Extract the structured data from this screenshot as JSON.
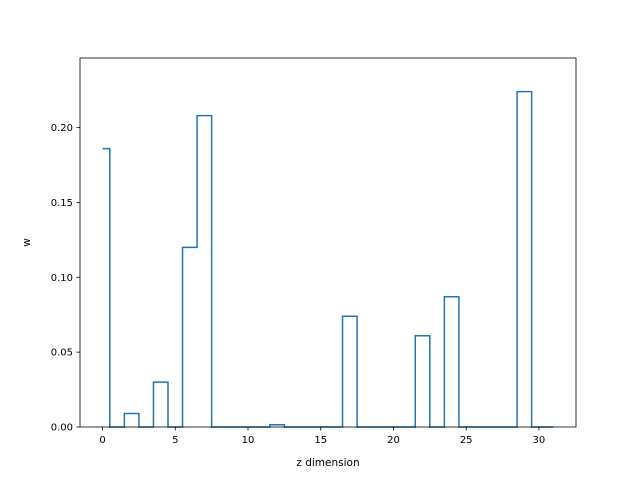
{
  "chart_data": {
    "type": "step",
    "title": "",
    "xlabel": "z dimension",
    "ylabel": "w",
    "xlim": [
      -1.55,
      32.55
    ],
    "ylim": [
      0,
      0.2465
    ],
    "xticks": [
      0,
      5,
      10,
      15,
      20,
      25,
      30
    ],
    "xtick_labels": [
      "0",
      "5",
      "10",
      "15",
      "20",
      "25",
      "30"
    ],
    "yticks": [
      0.0,
      0.05,
      0.1,
      0.15,
      0.2
    ],
    "ytick_labels": [
      "0.00",
      "0.05",
      "0.10",
      "0.15",
      "0.20"
    ],
    "step_where": "mid",
    "grid": false,
    "color": "#1f77b4",
    "x": [
      0,
      1,
      2,
      3,
      4,
      5,
      6,
      7,
      8,
      9,
      10,
      11,
      12,
      13,
      14,
      15,
      16,
      17,
      18,
      19,
      20,
      21,
      22,
      23,
      24,
      25,
      26,
      27,
      28,
      29,
      30,
      31
    ],
    "values": [
      0.186,
      0.0,
      0.009,
      0.0,
      0.03,
      0.0,
      0.12,
      0.208,
      0.0,
      0.0,
      0.0,
      0.0,
      0.0015,
      0.0,
      0.0,
      0.0,
      0.0,
      0.074,
      0.0,
      0.0,
      0.0,
      0.0,
      0.061,
      0.0,
      0.087,
      0.0,
      0.0,
      0.0,
      0.0,
      0.224,
      0.0,
      0.0
    ]
  }
}
